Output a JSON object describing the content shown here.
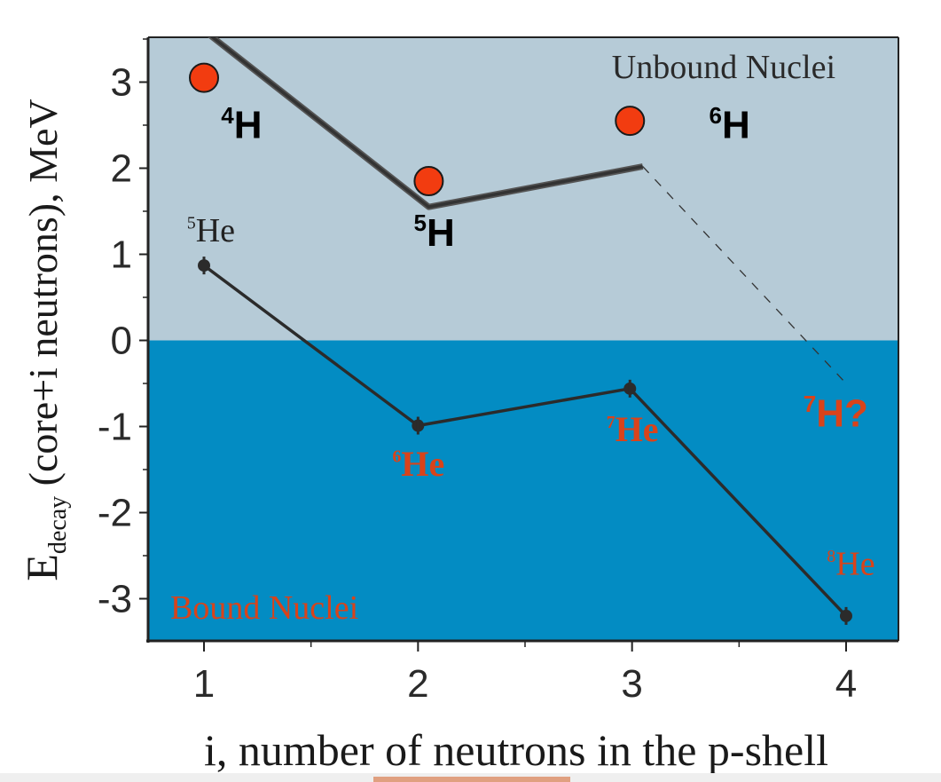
{
  "chart_data": {
    "type": "line",
    "xlabel": "i, number of neutrons in the p-shell",
    "ylabel_main": "E",
    "ylabel_sub": "decay",
    "ylabel_rest": "  (core+i neutrons),  MeV",
    "xlim": [
      0.75,
      4.25
    ],
    "ylim": [
      -3.5,
      3.5
    ],
    "xticks": [
      1,
      2,
      3,
      4
    ],
    "yticks": [
      3,
      2,
      1,
      0,
      -1,
      -2,
      -3
    ],
    "xtick_labels": [
      "1",
      "2",
      "3",
      "4"
    ],
    "ytick_labels": [
      "3",
      "2",
      "1",
      "0",
      "-1",
      "-2",
      "-3"
    ],
    "regions": {
      "unbound": {
        "label": "Unbound Nuclei",
        "color": "#b6cbd7"
      },
      "bound": {
        "label": "Bound Nuclei",
        "color": "#038cc3",
        "label_color": "#d9431a"
      }
    },
    "series": [
      {
        "id": "h_line",
        "x": [
          1,
          2.05,
          3.05
        ],
        "y": [
          3.6,
          1.55,
          2.02
        ],
        "color": "#333333",
        "extrapolation": {
          "x": [
            3.05,
            4.0
          ],
          "y": [
            2.02,
            -0.5
          ],
          "style": "dashed"
        }
      },
      {
        "id": "h_points",
        "x": [
          1,
          2.05,
          2.99
        ],
        "y": [
          3.05,
          1.85,
          2.55
        ],
        "marker": "circle",
        "color": "#f23c10"
      },
      {
        "id": "he_line",
        "x": [
          1,
          2,
          2.99,
          4
        ],
        "y": [
          0.87,
          -0.99,
          -0.56,
          -3.2
        ],
        "marker": "dot",
        "color": "#2b2b2b"
      }
    ],
    "annotations": [
      {
        "id": "h4",
        "sup": "4",
        "text": "H",
        "x": 1.08,
        "y": 2.35,
        "color": "#000000",
        "style": "sans"
      },
      {
        "id": "h5",
        "sup": "5",
        "text": "H",
        "x": 1.98,
        "y": 1.1,
        "color": "#000000",
        "style": "sans"
      },
      {
        "id": "h6",
        "sup": "6",
        "text": "H",
        "x": 3.36,
        "y": 2.35,
        "color": "#000000",
        "style": "sans"
      },
      {
        "id": "h7",
        "sup": "7",
        "text": "H?",
        "x": 3.8,
        "y": -1.0,
        "color": "#d9431a",
        "style": "sans"
      },
      {
        "id": "he5",
        "sup": "5",
        "text": "He",
        "x": 0.92,
        "y": 1.15,
        "color": "#222222",
        "style": "serif"
      },
      {
        "id": "he6",
        "sup": "6",
        "text": "He",
        "x": 1.88,
        "y": -1.57,
        "color": "#d9431a",
        "style": "serif-bold"
      },
      {
        "id": "he7",
        "sup": "7",
        "text": "He",
        "x": 2.88,
        "y": -1.17,
        "color": "#d9431a",
        "style": "serif-bold"
      },
      {
        "id": "he8",
        "sup": "8",
        "text": "He",
        "x": 3.91,
        "y": -2.72,
        "color": "#d9431a",
        "style": "serif"
      }
    ]
  }
}
